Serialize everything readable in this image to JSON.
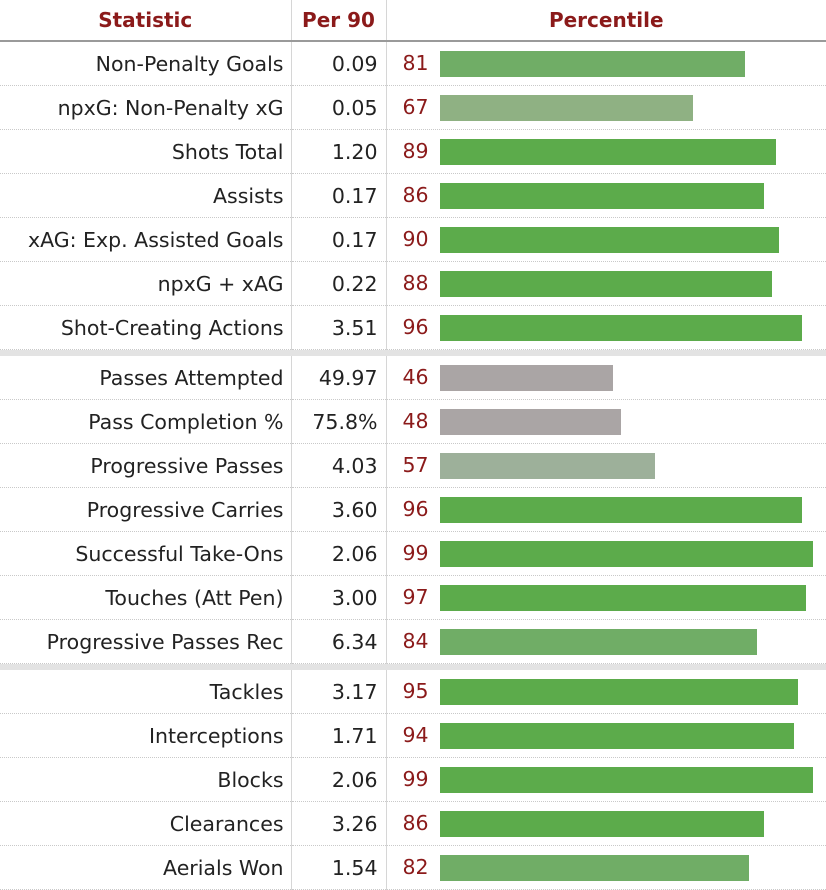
{
  "header": {
    "statistic": "Statistic",
    "per90": "Per 90",
    "percentile": "Percentile"
  },
  "chart_data": {
    "type": "table",
    "columns": [
      "Statistic",
      "Per 90",
      "Percentile"
    ],
    "groups": [
      {
        "rows": [
          {
            "statistic": "Non-Penalty Goals",
            "per90": "0.09",
            "percentile": 81
          },
          {
            "statistic": "npxG: Non-Penalty xG",
            "per90": "0.05",
            "percentile": 67
          },
          {
            "statistic": "Shots Total",
            "per90": "1.20",
            "percentile": 89
          },
          {
            "statistic": "Assists",
            "per90": "0.17",
            "percentile": 86
          },
          {
            "statistic": "xAG: Exp. Assisted Goals",
            "per90": "0.17",
            "percentile": 90
          },
          {
            "statistic": "npxG + xAG",
            "per90": "0.22",
            "percentile": 88
          },
          {
            "statistic": "Shot-Creating Actions",
            "per90": "3.51",
            "percentile": 96
          }
        ]
      },
      {
        "rows": [
          {
            "statistic": "Passes Attempted",
            "per90": "49.97",
            "percentile": 46
          },
          {
            "statistic": "Pass Completion %",
            "per90": "75.8%",
            "percentile": 48
          },
          {
            "statistic": "Progressive Passes",
            "per90": "4.03",
            "percentile": 57
          },
          {
            "statistic": "Progressive Carries",
            "per90": "3.60",
            "percentile": 96
          },
          {
            "statistic": "Successful Take-Ons",
            "per90": "2.06",
            "percentile": 99
          },
          {
            "statistic": "Touches (Att Pen)",
            "per90": "3.00",
            "percentile": 97
          },
          {
            "statistic": "Progressive Passes Rec",
            "per90": "6.34",
            "percentile": 84
          }
        ]
      },
      {
        "rows": [
          {
            "statistic": "Tackles",
            "per90": "3.17",
            "percentile": 95
          },
          {
            "statistic": "Interceptions",
            "per90": "1.71",
            "percentile": 94
          },
          {
            "statistic": "Blocks",
            "per90": "2.06",
            "percentile": 99
          },
          {
            "statistic": "Clearances",
            "per90": "3.26",
            "percentile": 86
          },
          {
            "statistic": "Aerials Won",
            "per90": "1.54",
            "percentile": 82
          }
        ]
      }
    ],
    "percentile_range": [
      0,
      100
    ],
    "bar_colors": {
      "high": "#5cab4b",
      "mid_high": "#70ad66",
      "mid": "#8fb183",
      "low_mid": "#9db09a",
      "low": "#aaa5a5"
    }
  }
}
